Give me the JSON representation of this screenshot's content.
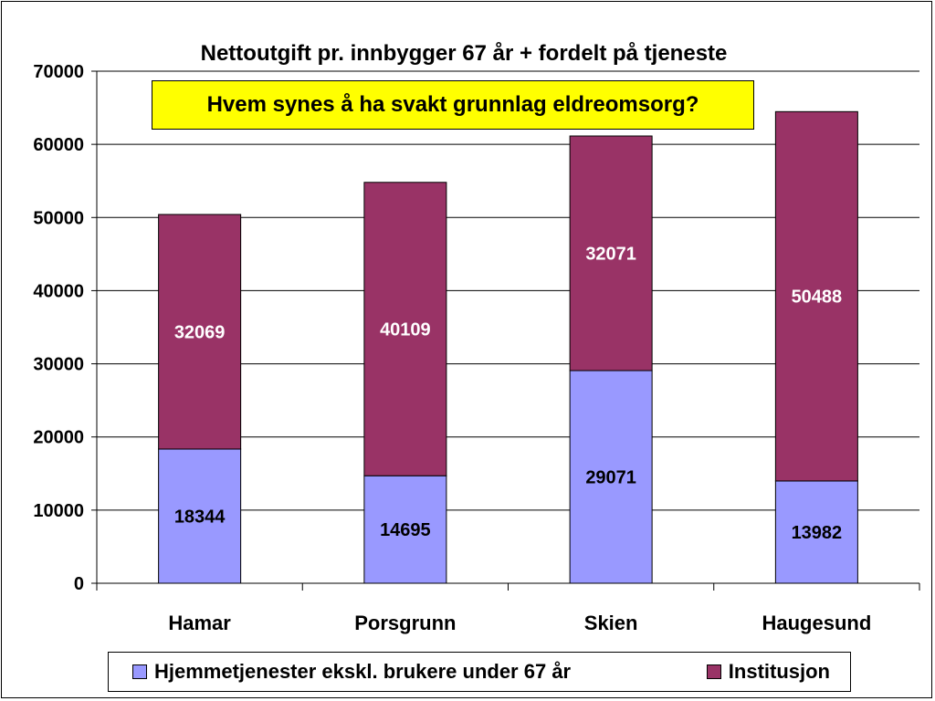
{
  "chart_data": {
    "type": "bar",
    "stacked": true,
    "title": "Nettoutgift pr. innbygger 67 år + fordelt på tjeneste",
    "annotation": "Hvem synes å ha svakt grunnlag eldreomsorg?",
    "categories": [
      "Hamar",
      "Porsgrunn",
      "Skien",
      "Haugesund"
    ],
    "series": [
      {
        "name": "Hjemmetjenester ekskl. brukere under 67 år",
        "color": "#9999ff",
        "values": [
          18344,
          14695,
          29071,
          13982
        ]
      },
      {
        "name": "Institusjon",
        "color": "#993366",
        "values": [
          32069,
          40109,
          32071,
          50488
        ]
      }
    ],
    "xlabel": "",
    "ylabel": "",
    "ylim": [
      0,
      70000
    ],
    "yticks": [
      0,
      10000,
      20000,
      30000,
      40000,
      50000,
      60000,
      70000
    ],
    "grid": true,
    "legend_position": "bottom"
  }
}
